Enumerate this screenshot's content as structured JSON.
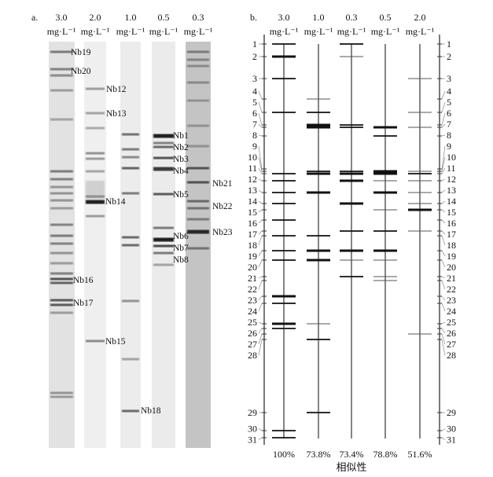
{
  "panel_a": {
    "label": "a.",
    "lanes": [
      {
        "conc": "3.0",
        "unit": "mg·L⁻¹"
      },
      {
        "conc": "2.0",
        "unit": "mg·L⁻¹"
      },
      {
        "conc": "1.0",
        "unit": "mg·L⁻¹"
      },
      {
        "conc": "0.5",
        "unit": "mg·L⁻¹"
      },
      {
        "conc": "0.3",
        "unit": "mg·L⁻¹"
      }
    ],
    "band_labels": [
      "Nb19",
      "Nb20",
      "Nb12",
      "Nb13",
      "Nb14",
      "Nb15",
      "Nb16",
      "Nb17",
      "Nb18",
      "Nb1",
      "Nb2",
      "Nb3",
      "Nb4",
      "Nb5",
      "Nb6",
      "Nb7",
      "Nb8",
      "Nb21",
      "Nb22",
      "Nb23"
    ]
  },
  "panel_b": {
    "label": "b.",
    "band_numbers": [
      "1",
      "2",
      "3",
      "4",
      "5",
      "6",
      "7",
      "8",
      "9",
      "10",
      "11",
      "12",
      "13",
      "14",
      "15",
      "16",
      "17",
      "18",
      "19",
      "20",
      "21",
      "22",
      "23",
      "24",
      "25",
      "26",
      "27",
      "28",
      "29",
      "30",
      "31"
    ],
    "lanes": [
      {
        "conc": "3.0",
        "unit": "mg·L⁻¹",
        "similarity": "100%",
        "bands": [
          [
            1,
            2
          ],
          [
            2,
            3
          ],
          [
            3,
            2
          ],
          [
            5,
            2
          ],
          [
            11,
            2
          ],
          [
            12,
            2
          ],
          [
            13,
            2
          ],
          [
            14,
            2
          ],
          [
            16,
            2
          ],
          [
            18,
            2
          ],
          [
            19,
            2
          ],
          [
            20,
            2
          ],
          [
            23,
            3
          ],
          [
            24,
            2
          ],
          [
            25,
            3
          ],
          [
            26,
            2
          ],
          [
            30,
            2
          ],
          [
            31,
            2
          ]
        ]
      },
      {
        "conc": "1.0",
        "unit": "mg·L⁻¹",
        "similarity": "73.8%",
        "bands": [
          [
            4,
            1
          ],
          [
            5,
            2
          ],
          [
            6,
            3
          ],
          [
            7,
            3
          ],
          [
            10,
            2
          ],
          [
            11,
            3
          ],
          [
            13,
            3
          ],
          [
            18,
            2
          ],
          [
            19,
            3
          ],
          [
            20,
            3
          ],
          [
            25,
            1
          ],
          [
            28,
            2
          ],
          [
            29,
            2
          ]
        ]
      },
      {
        "conc": "0.3",
        "unit": "mg·L⁻¹",
        "similarity": "73.4%",
        "bands": [
          [
            1,
            2
          ],
          [
            2,
            1
          ],
          [
            6,
            2
          ],
          [
            7,
            2
          ],
          [
            10,
            2
          ],
          [
            11,
            3
          ],
          [
            12,
            3
          ],
          [
            14,
            3
          ],
          [
            17,
            2
          ],
          [
            19,
            3
          ],
          [
            20,
            1
          ],
          [
            21,
            2
          ]
        ]
      },
      {
        "conc": "0.5",
        "unit": "mg·L⁻¹",
        "similarity": "78.8%",
        "bands": [
          [
            7,
            3
          ],
          [
            8,
            2
          ],
          [
            10,
            3
          ],
          [
            11,
            3
          ],
          [
            12,
            1
          ],
          [
            13,
            3
          ],
          [
            15,
            1
          ],
          [
            17,
            2
          ],
          [
            19,
            3
          ],
          [
            20,
            1
          ],
          [
            21,
            1
          ],
          [
            22,
            1
          ]
        ]
      },
      {
        "conc": "2.0",
        "unit": "mg·L⁻¹",
        "similarity": "51.6%",
        "bands": [
          [
            3,
            1
          ],
          [
            5,
            1
          ],
          [
            7,
            1
          ],
          [
            10,
            1
          ],
          [
            11,
            2
          ],
          [
            12,
            1
          ],
          [
            13,
            1
          ],
          [
            14,
            1
          ],
          [
            15,
            3
          ],
          [
            17,
            1
          ],
          [
            27,
            1
          ]
        ]
      }
    ],
    "xlabel": "相似性"
  }
}
